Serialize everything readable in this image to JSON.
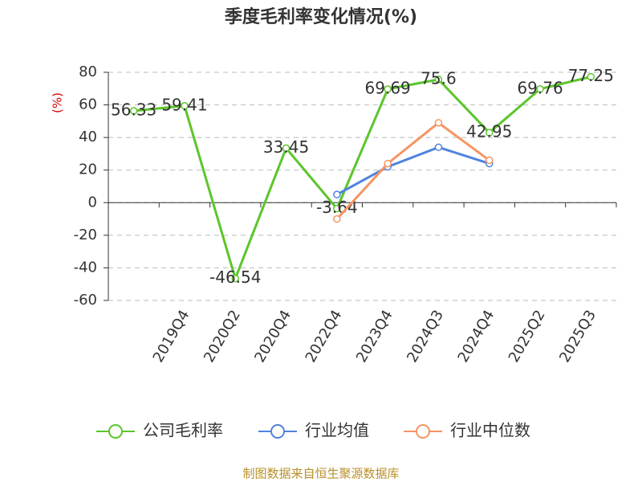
{
  "chart_data": {
    "type": "line",
    "title": "季度毛利率变化情况(%)",
    "y_label": "(%)",
    "categories": [
      null,
      "2019Q4",
      "2020Q2",
      "2020Q4",
      "2022Q4",
      "2023Q4",
      "2024Q3",
      "2024Q4",
      "2025Q2",
      "2025Q3"
    ],
    "series": [
      {
        "name": "公司毛利率",
        "color": "#5cc52b",
        "values": [
          56.33,
          59.41,
          -46.54,
          33.45,
          -3.64,
          69.69,
          75.6,
          42.95,
          69.76,
          77.25
        ]
      },
      {
        "name": "行业均值",
        "color": "#5183dd",
        "values": [
          null,
          null,
          null,
          null,
          5,
          22,
          34,
          24,
          null,
          null
        ]
      },
      {
        "name": "行业中位数",
        "color": "#f59563",
        "values": [
          null,
          null,
          null,
          null,
          -10,
          24,
          49,
          26,
          null,
          null
        ]
      }
    ],
    "ylim": [
      -60,
      80
    ],
    "yticks": [
      -60,
      -40,
      -20,
      0,
      20,
      40,
      60,
      80
    ],
    "grid": true,
    "source": "制图数据来自恒生聚源数据库"
  }
}
